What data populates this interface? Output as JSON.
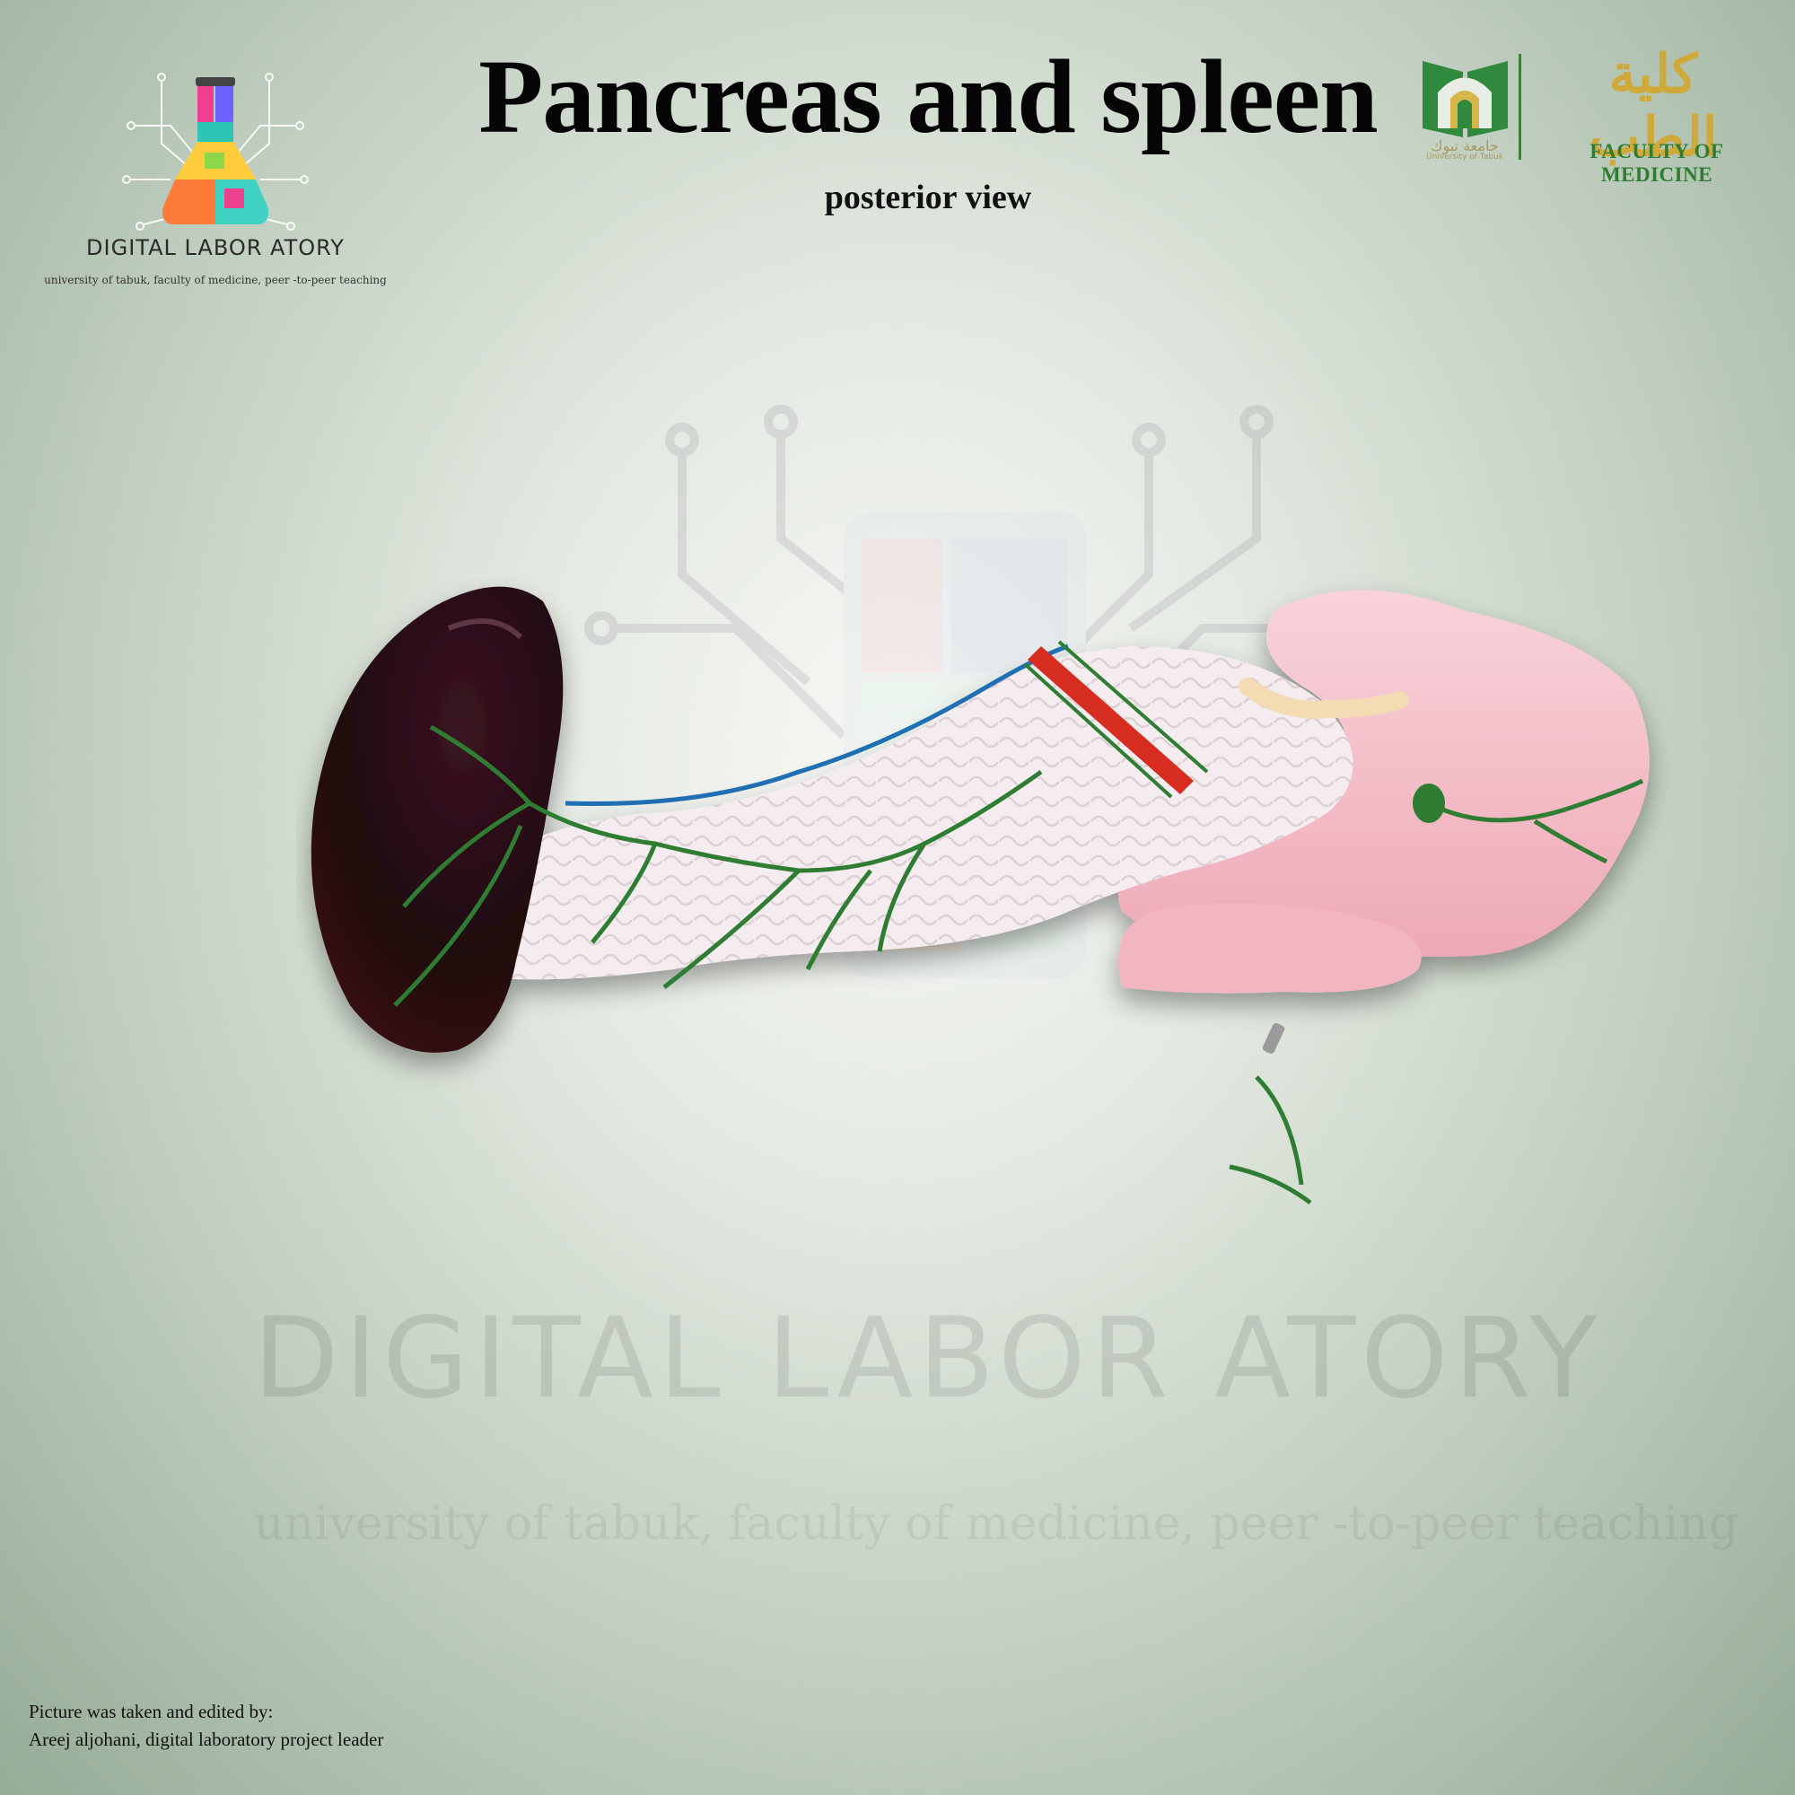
{
  "header": {
    "title": "Pancreas and spleen",
    "subtitle": "posterior view"
  },
  "lab_logo": {
    "name": "DIGITAL LABOR ATORY",
    "tagline": "university of tabuk, faculty of medicine, peer -to-peer teaching",
    "icon": "puzzle-flask-icon"
  },
  "university_logo": {
    "arabic_name": "جامعة تبوك",
    "english_name": "University of Tabuk",
    "icon": "green-book-arch-icon"
  },
  "faculty_logo": {
    "arabic_name": "كلية الطب",
    "english_name": "FACULTY OF MEDICINE",
    "color": "#2e7d32",
    "arabic_color": "#cfa93a"
  },
  "watermark": {
    "name": "DIGITAL LABOR ATORY",
    "tagline": "university of tabuk, faculty of medicine, peer -to-peer teaching"
  },
  "specimen": {
    "icon": "pancreas-spleen-model",
    "colors": {
      "spleen": "#2a0a14",
      "pancreas_body": "#f3e8ec",
      "duodenum": "#f5bfca",
      "vessels": "#2e7d32",
      "artery": "#d62d20",
      "vein": "#1f6fb2",
      "duct": "#f3dcb4"
    }
  },
  "credit": {
    "line1": "Picture was taken and edited by:",
    "line2": "Areej aljohani, digital laboratory project leader"
  }
}
